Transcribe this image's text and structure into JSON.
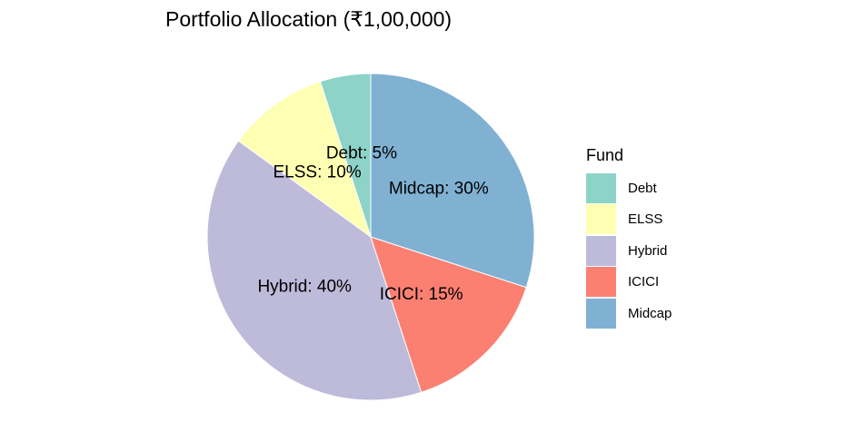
{
  "chart_data": {
    "type": "pie",
    "title": "Portfolio Allocation (₹1,00,000)",
    "legend": {
      "title": "Fund",
      "placement": "right"
    },
    "slices": [
      {
        "label": "Debt",
        "value": 5,
        "color": "#8DD3C7",
        "data_label": "Debt: 5%"
      },
      {
        "label": "ELSS",
        "value": 10,
        "color": "#FFFFB3",
        "data_label": "ELSS: 10%"
      },
      {
        "label": "Hybrid",
        "value": 40,
        "color": "#BEBADA",
        "data_label": "Hybrid: 40%"
      },
      {
        "label": "ICICI",
        "value": 15,
        "color": "#FB8072",
        "data_label": "ICICI: 15%"
      },
      {
        "label": "Midcap",
        "value": 30,
        "color": "#80B1D3",
        "data_label": "Midcap: 30%"
      }
    ]
  }
}
